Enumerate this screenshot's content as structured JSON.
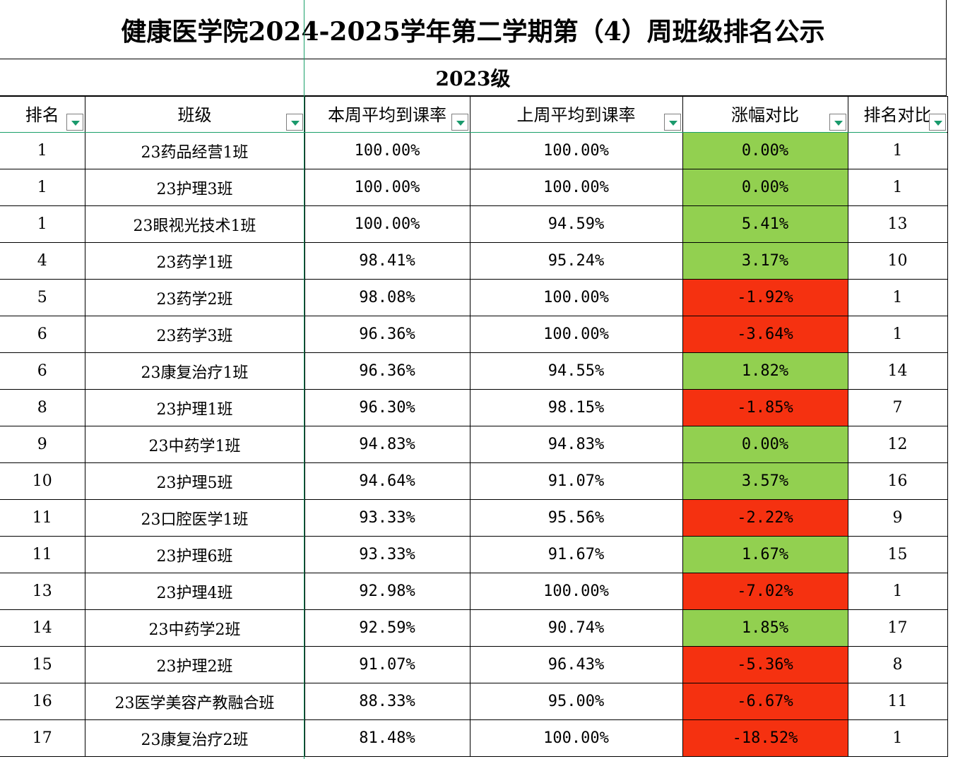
{
  "title": "健康医学院2024-2025学年第二学期第（4）周班级排名公示",
  "grade": "2023级",
  "headers": {
    "rank": "排名",
    "class": "班级",
    "this_week": "本周平均到课率",
    "last_week": "上周平均到课率",
    "change": "涨幅对比",
    "rank_compare": "排名对比"
  },
  "colors": {
    "positive": "#92d050",
    "negative": "#f53110",
    "filter_arrow": "#1a9a6c"
  },
  "rows": [
    {
      "rank": "1",
      "class": "23药品经营1班",
      "this_week": "100.00%",
      "last_week": "100.00%",
      "change": "0.00%",
      "rank_compare": "1",
      "trend": "pos"
    },
    {
      "rank": "1",
      "class": "23护理3班",
      "this_week": "100.00%",
      "last_week": "100.00%",
      "change": "0.00%",
      "rank_compare": "1",
      "trend": "pos"
    },
    {
      "rank": "1",
      "class": "23眼视光技术1班",
      "this_week": "100.00%",
      "last_week": "94.59%",
      "change": "5.41%",
      "rank_compare": "13",
      "trend": "pos"
    },
    {
      "rank": "4",
      "class": "23药学1班",
      "this_week": "98.41%",
      "last_week": "95.24%",
      "change": "3.17%",
      "rank_compare": "10",
      "trend": "pos"
    },
    {
      "rank": "5",
      "class": "23药学2班",
      "this_week": "98.08%",
      "last_week": "100.00%",
      "change": "-1.92%",
      "rank_compare": "1",
      "trend": "neg"
    },
    {
      "rank": "6",
      "class": "23药学3班",
      "this_week": "96.36%",
      "last_week": "100.00%",
      "change": "-3.64%",
      "rank_compare": "1",
      "trend": "neg"
    },
    {
      "rank": "6",
      "class": "23康复治疗1班",
      "this_week": "96.36%",
      "last_week": "94.55%",
      "change": "1.82%",
      "rank_compare": "14",
      "trend": "pos"
    },
    {
      "rank": "8",
      "class": "23护理1班",
      "this_week": "96.30%",
      "last_week": "98.15%",
      "change": "-1.85%",
      "rank_compare": "7",
      "trend": "neg"
    },
    {
      "rank": "9",
      "class": "23中药学1班",
      "this_week": "94.83%",
      "last_week": "94.83%",
      "change": "0.00%",
      "rank_compare": "12",
      "trend": "pos"
    },
    {
      "rank": "10",
      "class": "23护理5班",
      "this_week": "94.64%",
      "last_week": "91.07%",
      "change": "3.57%",
      "rank_compare": "16",
      "trend": "pos"
    },
    {
      "rank": "11",
      "class": "23口腔医学1班",
      "this_week": "93.33%",
      "last_week": "95.56%",
      "change": "-2.22%",
      "rank_compare": "9",
      "trend": "neg"
    },
    {
      "rank": "11",
      "class": "23护理6班",
      "this_week": "93.33%",
      "last_week": "91.67%",
      "change": "1.67%",
      "rank_compare": "15",
      "trend": "pos"
    },
    {
      "rank": "13",
      "class": "23护理4班",
      "this_week": "92.98%",
      "last_week": "100.00%",
      "change": "-7.02%",
      "rank_compare": "1",
      "trend": "neg"
    },
    {
      "rank": "14",
      "class": "23中药学2班",
      "this_week": "92.59%",
      "last_week": "90.74%",
      "change": "1.85%",
      "rank_compare": "17",
      "trend": "pos"
    },
    {
      "rank": "15",
      "class": "23护理2班",
      "this_week": "91.07%",
      "last_week": "96.43%",
      "change": "-5.36%",
      "rank_compare": "8",
      "trend": "neg"
    },
    {
      "rank": "16",
      "class": "23医学美容产教融合班",
      "this_week": "88.33%",
      "last_week": "95.00%",
      "change": "-6.67%",
      "rank_compare": "11",
      "trend": "neg"
    },
    {
      "rank": "17",
      "class": "23康复治疗2班",
      "this_week": "81.48%",
      "last_week": "100.00%",
      "change": "-18.52%",
      "rank_compare": "1",
      "trend": "neg"
    }
  ]
}
